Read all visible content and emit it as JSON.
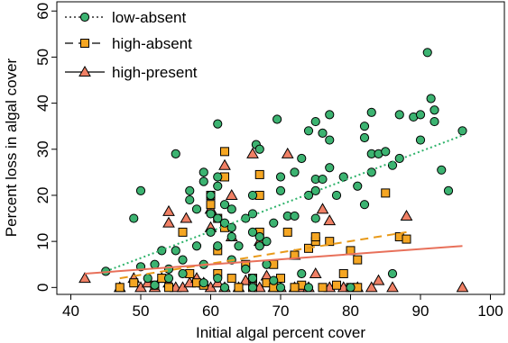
{
  "chart_data": {
    "type": "scatter",
    "xlabel": "Initial algal percent cover",
    "ylabel": "Percent loss in algal cover",
    "xlim": [
      38,
      102
    ],
    "ylim": [
      -1.5,
      62
    ],
    "xticks": [
      40,
      50,
      60,
      70,
      80,
      90,
      100
    ],
    "yticks": [
      0,
      10,
      20,
      30,
      40,
      50,
      60
    ],
    "grid": false,
    "legend_position": "top-left",
    "series": [
      {
        "name": "low-absent",
        "marker": "circle",
        "line_style": "dotted",
        "color": "#3cb371",
        "line_color": "#2fb36b",
        "trend": {
          "x": [
            45,
            96
          ],
          "y": [
            3.5,
            33
          ]
        },
        "points": [
          [
            45,
            3.5
          ],
          [
            49,
            15
          ],
          [
            50,
            21
          ],
          [
            50,
            4.5
          ],
          [
            51,
            2
          ],
          [
            52,
            5
          ],
          [
            52,
            0.5
          ],
          [
            53,
            8
          ],
          [
            54,
            4
          ],
          [
            54,
            2
          ],
          [
            55,
            29
          ],
          [
            55,
            8
          ],
          [
            56,
            6
          ],
          [
            56,
            3
          ],
          [
            57,
            21
          ],
          [
            57,
            19
          ],
          [
            58,
            17
          ],
          [
            58,
            9
          ],
          [
            59,
            25
          ],
          [
            59,
            23
          ],
          [
            59,
            5
          ],
          [
            59,
            1
          ],
          [
            60,
            20
          ],
          [
            60,
            16
          ],
          [
            60,
            12
          ],
          [
            61,
            35.5
          ],
          [
            61,
            24
          ],
          [
            61,
            22
          ],
          [
            61,
            15
          ],
          [
            61,
            9
          ],
          [
            61,
            2
          ],
          [
            62,
            18
          ],
          [
            62,
            14
          ],
          [
            63,
            17
          ],
          [
            63,
            13
          ],
          [
            63,
            11
          ],
          [
            63,
            6
          ],
          [
            64,
            9
          ],
          [
            65,
            15
          ],
          [
            65,
            4
          ],
          [
            66,
            20
          ],
          [
            66,
            16
          ],
          [
            66,
            12
          ],
          [
            66,
            2
          ],
          [
            66.5,
            31
          ],
          [
            67,
            30
          ],
          [
            67,
            9
          ],
          [
            67,
            11
          ],
          [
            68,
            10
          ],
          [
            68,
            5
          ],
          [
            69,
            14
          ],
          [
            69,
            1.5
          ],
          [
            69.5,
            36.5
          ],
          [
            70,
            21
          ],
          [
            70,
            24
          ],
          [
            71,
            15.5
          ],
          [
            72,
            15.5
          ],
          [
            72,
            25
          ],
          [
            73,
            28
          ],
          [
            73,
            3
          ],
          [
            74,
            34
          ],
          [
            74,
            20
          ],
          [
            75,
            36
          ],
          [
            75,
            23.5
          ],
          [
            75,
            21
          ],
          [
            75,
            15
          ],
          [
            76,
            33.5
          ],
          [
            76,
            23.5
          ],
          [
            77,
            37.5
          ],
          [
            77,
            32
          ],
          [
            77,
            26
          ],
          [
            78,
            20
          ],
          [
            79,
            24
          ],
          [
            81,
            22
          ],
          [
            82,
            35
          ],
          [
            82,
            32.5
          ],
          [
            82,
            18
          ],
          [
            83,
            38
          ],
          [
            83,
            29
          ],
          [
            83,
            25
          ],
          [
            84,
            29
          ],
          [
            85,
            29.5
          ],
          [
            86,
            26.5
          ],
          [
            86,
            3
          ],
          [
            87,
            37.5
          ],
          [
            87,
            28
          ],
          [
            89,
            37
          ],
          [
            90,
            32
          ],
          [
            90,
            37.5
          ],
          [
            91,
            51
          ],
          [
            91.5,
            41
          ],
          [
            92,
            36
          ],
          [
            92,
            38.5
          ],
          [
            93,
            25.5
          ],
          [
            94,
            21
          ],
          [
            96,
            34
          ],
          [
            66,
            0
          ],
          [
            62,
            0
          ],
          [
            70,
            0
          ],
          [
            74,
            0
          ],
          [
            80,
            0
          ]
        ]
      },
      {
        "name": "high-absent",
        "marker": "square",
        "line_style": "dashed",
        "color": "#f5a623",
        "line_color": "#e89a1a",
        "trend": {
          "x": [
            47,
            88
          ],
          "y": [
            2,
            12
          ]
        },
        "points": [
          [
            47,
            0
          ],
          [
            49,
            1
          ],
          [
            52,
            0.5
          ],
          [
            53,
            2
          ],
          [
            54,
            0
          ],
          [
            56,
            12
          ],
          [
            57,
            3
          ],
          [
            58,
            1
          ],
          [
            59,
            0.5
          ],
          [
            60,
            20
          ],
          [
            60,
            18
          ],
          [
            61,
            15
          ],
          [
            61,
            8
          ],
          [
            61,
            3
          ],
          [
            62,
            29.5
          ],
          [
            62,
            24
          ],
          [
            62,
            13
          ],
          [
            63,
            2
          ],
          [
            64,
            0
          ],
          [
            65,
            5
          ],
          [
            66,
            2
          ],
          [
            67,
            24.5
          ],
          [
            67,
            20
          ],
          [
            67,
            12
          ],
          [
            68,
            1
          ],
          [
            69,
            5
          ],
          [
            70,
            2
          ],
          [
            71,
            12
          ],
          [
            72,
            7
          ],
          [
            73,
            0.5
          ],
          [
            74,
            8.5
          ],
          [
            75,
            10
          ],
          [
            75,
            11
          ],
          [
            77,
            10
          ],
          [
            78,
            0.5
          ],
          [
            79,
            3
          ],
          [
            80,
            8
          ],
          [
            80,
            0
          ],
          [
            81,
            6
          ],
          [
            81,
            0
          ],
          [
            85,
            20.5
          ],
          [
            87,
            11
          ],
          [
            88,
            10.5
          ],
          [
            69,
            0
          ],
          [
            72,
            0
          ],
          [
            76,
            0
          ],
          [
            66,
            0
          ]
        ]
      },
      {
        "name": "high-present",
        "marker": "triangle",
        "line_style": "solid",
        "color": "#f08065",
        "line_color": "#e8705a",
        "trend": {
          "x": [
            42,
            96
          ],
          "y": [
            3,
            9
          ]
        },
        "points": [
          [
            42,
            2
          ],
          [
            47,
            0
          ],
          [
            49,
            2
          ],
          [
            50,
            0
          ],
          [
            51,
            1
          ],
          [
            52,
            0
          ],
          [
            53,
            2
          ],
          [
            54,
            16.5
          ],
          [
            54,
            14
          ],
          [
            54,
            1
          ],
          [
            55,
            0
          ],
          [
            56,
            0
          ],
          [
            56.5,
            15
          ],
          [
            57,
            1
          ],
          [
            58,
            2
          ],
          [
            59,
            1
          ],
          [
            60,
            17
          ],
          [
            60,
            13
          ],
          [
            60,
            0
          ],
          [
            61,
            1
          ],
          [
            62,
            26.5
          ],
          [
            62,
            0
          ],
          [
            63,
            20
          ],
          [
            63,
            11
          ],
          [
            64,
            0
          ],
          [
            65,
            1.5
          ],
          [
            66,
            29
          ],
          [
            67,
            10
          ],
          [
            67,
            0
          ],
          [
            68,
            2.5
          ],
          [
            69,
            0
          ],
          [
            70,
            0
          ],
          [
            71,
            29
          ],
          [
            72,
            7
          ],
          [
            72,
            0
          ],
          [
            73,
            0
          ],
          [
            74,
            0
          ],
          [
            75,
            3
          ],
          [
            76,
            17
          ],
          [
            77,
            14.5
          ],
          [
            77,
            0
          ],
          [
            79,
            0
          ],
          [
            81,
            0
          ],
          [
            83,
            0
          ],
          [
            84,
            1.5
          ],
          [
            86,
            0
          ],
          [
            88,
            15.5
          ],
          [
            96,
            0
          ]
        ]
      }
    ]
  }
}
